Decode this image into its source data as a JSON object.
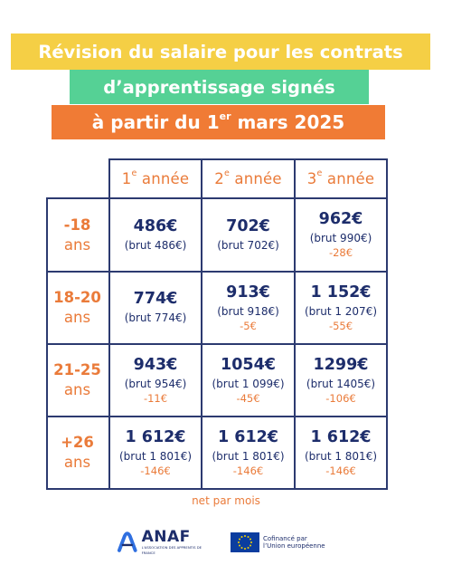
{
  "banners": {
    "line1": "Révision du salaire pour les contrats",
    "line2": "d’apprentissage signés",
    "line3_prefix": "à partir du 1",
    "line3_sup": "er",
    "line3_suffix": " mars 2025"
  },
  "columns": [
    {
      "num": "1",
      "sup": "e",
      "label": " année"
    },
    {
      "num": "2",
      "sup": "e",
      "label": " année"
    },
    {
      "num": "3",
      "sup": "e",
      "label": " année"
    }
  ],
  "rows": [
    {
      "age_top": "-18",
      "age_bottom": "ans",
      "cells": [
        {
          "net": "486€",
          "brut": "(brut 486€)",
          "diff": ""
        },
        {
          "net": "702€",
          "brut": "(brut 702€)",
          "diff": ""
        },
        {
          "net": "962€",
          "brut": "(brut 990€)",
          "diff": "-28€"
        }
      ]
    },
    {
      "age_top": "18-20",
      "age_bottom": "ans",
      "cells": [
        {
          "net": "774€",
          "brut": "(brut 774€)",
          "diff": ""
        },
        {
          "net": "913€",
          "brut": "(brut 918€)",
          "diff": "-5€"
        },
        {
          "net": "1 152€",
          "brut": "(brut 1 207€)",
          "diff": "-55€"
        }
      ]
    },
    {
      "age_top": "21-25",
      "age_bottom": "ans",
      "cells": [
        {
          "net": "943€",
          "brut": "(brut 954€)",
          "diff": "-11€"
        },
        {
          "net": "1054€",
          "brut": "(brut 1 099€)",
          "diff": "-45€"
        },
        {
          "net": "1299€",
          "brut": "(brut 1405€)",
          "diff": "-106€"
        }
      ]
    },
    {
      "age_top": "+26",
      "age_bottom": "ans",
      "cells": [
        {
          "net": "1 612€",
          "brut": "(brut 1 801€)",
          "diff": "-146€"
        },
        {
          "net": "1 612€",
          "brut": "(brut 1 801€)",
          "diff": "-146€"
        },
        {
          "net": "1 612€",
          "brut": "(brut 1 801€)",
          "diff": "-146€"
        }
      ]
    }
  ],
  "footnote": "net par mois",
  "logos": {
    "anaf_name": "ANAF",
    "anaf_subtitle": "L'ASSOCIATION DES APPRENTIS DE FRANCE",
    "eu_line1": "Cofinancé par",
    "eu_line2": "l’Union européenne"
  },
  "colors": {
    "yellow": "#f5cf45",
    "green": "#55d195",
    "orange": "#f07b35",
    "navy": "#1d2d6b",
    "accent_text": "#ea7b3a"
  }
}
